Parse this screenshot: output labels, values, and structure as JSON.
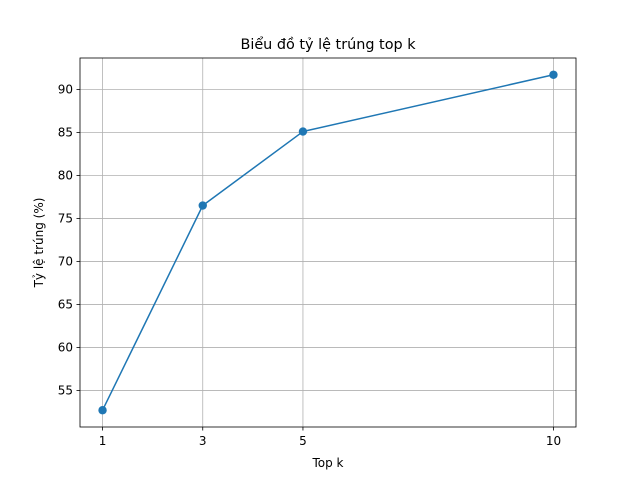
{
  "chart_data": {
    "type": "line",
    "title": "Biểu đồ tỷ lệ trúng top k",
    "xlabel": "Top k",
    "ylabel": "Tỷ lệ trúng (%)",
    "x": [
      1,
      3,
      5,
      10
    ],
    "series": [
      {
        "values": [
          52.7,
          76.5,
          85.1,
          91.7
        ],
        "color": "#1f77b4",
        "marker": "circle"
      }
    ],
    "xticks": [
      1,
      3,
      5,
      10
    ],
    "yticks": [
      55,
      60,
      65,
      70,
      75,
      80,
      85,
      90
    ],
    "xlim": [
      0.55,
      10.45
    ],
    "ylim": [
      50.75,
      93.65
    ],
    "grid": true
  }
}
